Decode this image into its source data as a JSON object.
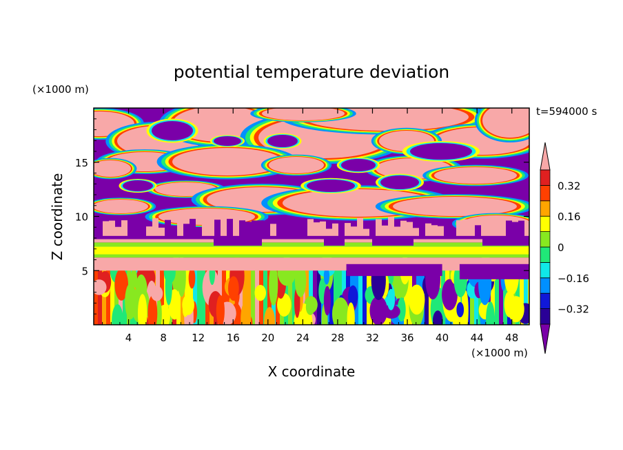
{
  "chart_data": {
    "type": "heatmap",
    "title": "potential temperature deviation",
    "time_label": "t=594000 s",
    "xlabel": "X coordinate",
    "ylabel": "Z coordinate",
    "x_unit": "(×1000 m)",
    "y_unit": "(×1000 m)",
    "xlim": [
      0,
      50
    ],
    "ylim": [
      0,
      20
    ],
    "x_ticks": [
      4,
      8,
      12,
      16,
      20,
      24,
      28,
      32,
      36,
      40,
      44,
      48
    ],
    "y_ticks": [
      5,
      10,
      15
    ],
    "colorbar": {
      "labels": [
        "0.32",
        "0.16",
        "0",
        "-0.16",
        "-0.32"
      ],
      "label_values": [
        0.32,
        0.16,
        0,
        -0.16,
        -0.32
      ],
      "levels": [
        -0.4,
        -0.32,
        -0.24,
        -0.16,
        -0.08,
        0,
        0.08,
        0.16,
        0.24,
        0.32,
        0.4
      ],
      "colors": [
        "#7a00a8",
        "#2a0096",
        "#1018d8",
        "#0090ff",
        "#10e8e8",
        "#20e878",
        "#88e820",
        "#ffff00",
        "#ffa500",
        "#ff4000",
        "#e02020",
        "#f8a8a8"
      ],
      "extend": "both"
    },
    "layers": [
      {
        "z_range": [
          0,
          5
        ],
        "description_values": "mixed -0.4 to 0.4"
      },
      {
        "z_range": [
          5,
          6
        ],
        "value": 0.4
      },
      {
        "z_range": [
          6,
          7.5
        ],
        "value": 0.16
      },
      {
        "z_range": [
          7.5,
          20
        ],
        "values": [
          -0.4,
          0.4
        ]
      }
    ]
  }
}
